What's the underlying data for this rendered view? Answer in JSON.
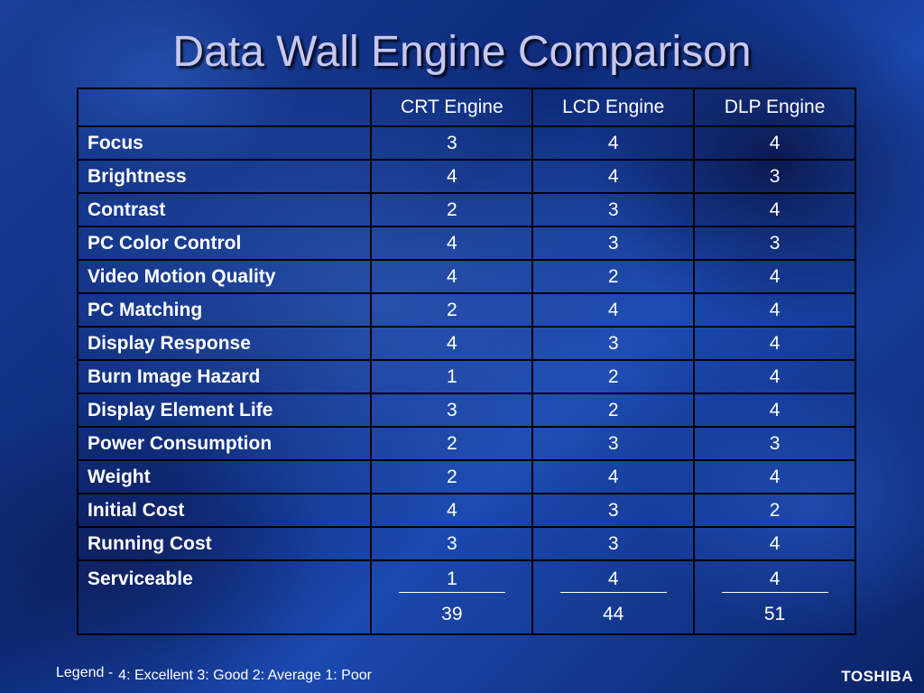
{
  "title": "Data Wall Engine Comparison",
  "table": {
    "headers": [
      "",
      "CRT Engine",
      "LCD Engine",
      "DLP Engine"
    ],
    "rows": [
      {
        "label": "Focus",
        "values": [
          "3",
          "4",
          "4"
        ]
      },
      {
        "label": "Brightness",
        "values": [
          "4",
          "4",
          "3"
        ]
      },
      {
        "label": "Contrast",
        "values": [
          "2",
          "3",
          "4"
        ]
      },
      {
        "label": "PC Color Control",
        "values": [
          "4",
          "3",
          "3"
        ]
      },
      {
        "label": "Video Motion Quality",
        "values": [
          "4",
          "2",
          "4"
        ]
      },
      {
        "label": "PC Matching",
        "values": [
          "2",
          "4",
          "4"
        ]
      },
      {
        "label": "Display Response",
        "values": [
          "4",
          "3",
          "4"
        ]
      },
      {
        "label": "Burn Image Hazard",
        "values": [
          "1",
          "2",
          "4"
        ]
      },
      {
        "label": "Display Element Life",
        "values": [
          "3",
          "2",
          "4"
        ]
      },
      {
        "label": "Power Consumption",
        "values": [
          "2",
          "3",
          "3"
        ]
      },
      {
        "label": "Weight",
        "values": [
          "2",
          "4",
          "4"
        ]
      },
      {
        "label": "Initial Cost",
        "values": [
          "4",
          "3",
          "2"
        ]
      },
      {
        "label": "Running Cost",
        "values": [
          "3",
          "3",
          "4"
        ]
      }
    ],
    "last_row": {
      "label": "Serviceable",
      "values": [
        "1",
        "4",
        "4"
      ]
    },
    "totals": [
      "39",
      "44",
      "51"
    ]
  },
  "legend": {
    "prefix": "Legend -",
    "text": "4: Excellent 3: Good 2: Average 1: Poor"
  },
  "brand": "TOSHIBA",
  "colors": {
    "background": "#1a3f9a",
    "title": "#c8c8ee",
    "text": "#ffffff",
    "grid": "#000000"
  }
}
